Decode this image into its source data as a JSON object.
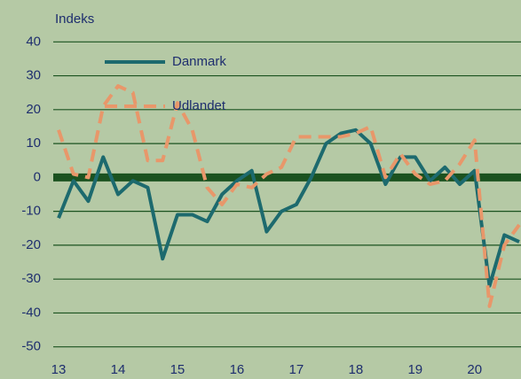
{
  "chart_data": {
    "type": "line",
    "y_label": "Indeks",
    "x": [
      13,
      13.25,
      13.5,
      13.75,
      14,
      14.25,
      14.5,
      14.75,
      15,
      15.25,
      15.5,
      15.75,
      16,
      16.25,
      16.5,
      16.75,
      17,
      17.25,
      17.5,
      17.75,
      18,
      18.25,
      18.5,
      18.75,
      19,
      19.25,
      19.5,
      19.75,
      20,
      20.25,
      20.5,
      20.75
    ],
    "series": [
      {
        "name": "Danmark",
        "color": "#1d6a6e",
        "dashed": false,
        "values": [
          -12,
          -1,
          -7,
          6,
          -5,
          -1,
          -3,
          -24,
          -11,
          -11,
          -13,
          -5,
          -1,
          2,
          -16,
          -10,
          -8,
          0,
          10,
          13,
          14,
          10,
          -2,
          6,
          6,
          -1,
          3,
          -2,
          2,
          -32,
          -17,
          -19
        ]
      },
      {
        "name": "Udlandet",
        "color": "#e8976a",
        "dashed": true,
        "values": [
          14,
          1,
          0,
          21,
          27,
          25,
          5,
          5,
          22,
          14,
          -3,
          -8,
          -2,
          -3,
          1,
          3,
          12,
          12,
          12,
          12,
          13,
          15,
          0,
          7,
          1,
          -2,
          -1,
          4,
          11,
          -38,
          -20,
          -14
        ]
      }
    ],
    "xlim": [
      12.91,
      20.78
    ],
    "xticks": [
      13,
      14,
      15,
      16,
      17,
      18,
      19,
      20
    ],
    "ylim": [
      -54,
      44
    ],
    "yticks": [
      -50,
      -40,
      -30,
      -20,
      -10,
      0,
      10,
      20,
      30,
      40
    ],
    "grid": true
  }
}
